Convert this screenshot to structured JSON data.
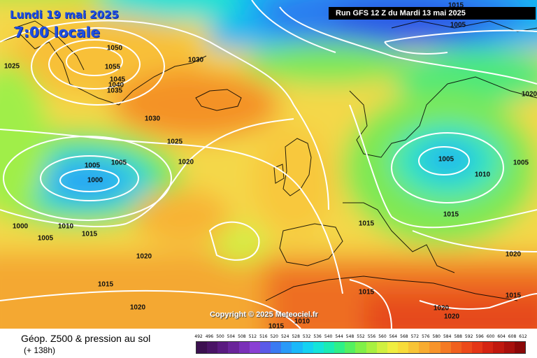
{
  "header": {
    "date": "Lundi 19 mai 2025",
    "time": "7:00 locale",
    "run": "Run GFS 12 Z du Mardi 13 mai 2025",
    "copyright": "Copyright © 2025 Meteociel.fr"
  },
  "legend": {
    "title": "Géop. Z500 & pression au sol",
    "subtitle": "(+ 138h)",
    "scale_values": [
      "492",
      "496",
      "500",
      "504",
      "508",
      "512",
      "516",
      "520",
      "524",
      "528",
      "532",
      "536",
      "540",
      "544",
      "548",
      "552",
      "556",
      "560",
      "564",
      "568",
      "572",
      "576",
      "580",
      "584",
      "588",
      "592",
      "596",
      "600",
      "604",
      "608",
      "612"
    ],
    "scale_colors": [
      "#3c1050",
      "#4a1466",
      "#5a1a80",
      "#6a249a",
      "#7a30b8",
      "#8a40d4",
      "#5a5ae8",
      "#3a7af2",
      "#2a9af8",
      "#1ab8fa",
      "#14d2f2",
      "#14e4da",
      "#1aecb4",
      "#2ef088",
      "#54f060",
      "#80f048",
      "#a8f040",
      "#d0f040",
      "#f0ee40",
      "#f8dc3a",
      "#f8c436",
      "#f8ac30",
      "#f8942a",
      "#f47a24",
      "#f0601e",
      "#ec4a1a",
      "#e43616",
      "#d42412",
      "#c0180e",
      "#a8100c",
      "#8a0808"
    ]
  },
  "isobars": [
    {
      "name": "label-1015-top",
      "text": "1015"
    },
    {
      "name": "label-1005-top",
      "text": "1005"
    },
    {
      "name": "label-1020-ne",
      "text": "1020"
    },
    {
      "name": "label-1050",
      "text": "1050"
    },
    {
      "name": "label-1055",
      "text": "1055"
    },
    {
      "name": "label-1045",
      "text": "1045"
    },
    {
      "name": "label-1040",
      "text": "1040"
    },
    {
      "name": "label-1035",
      "text": "1035"
    },
    {
      "name": "label-1030-greenland",
      "text": "1030"
    },
    {
      "name": "label-1025-west",
      "text": "1025"
    },
    {
      "name": "label-1030-mid",
      "text": "1030"
    },
    {
      "name": "label-1025-mid",
      "text": "1025"
    },
    {
      "name": "label-1020-mid",
      "text": "1020"
    },
    {
      "name": "label-1005-low-a",
      "text": "1005"
    },
    {
      "name": "label-1005-low-b",
      "text": "1005"
    },
    {
      "name": "label-1000-low",
      "text": "1000"
    },
    {
      "name": "label-1000-west",
      "text": "1000"
    },
    {
      "name": "label-1010-west",
      "text": "1010"
    },
    {
      "name": "label-1005-west",
      "text": "1005"
    },
    {
      "name": "label-1015-west",
      "text": "1015"
    },
    {
      "name": "label-1020-south",
      "text": "1020"
    },
    {
      "name": "label-1015-sw",
      "text": "1015"
    },
    {
      "name": "label-1020-sw",
      "text": "1020"
    },
    {
      "name": "label-1005-europe",
      "text": "1005"
    },
    {
      "name": "label-1010-europe",
      "text": "1010"
    },
    {
      "name": "label-1005-east",
      "text": "1005"
    },
    {
      "name": "label-1015-europe",
      "text": "1015"
    },
    {
      "name": "label-1015-france",
      "text": "1015"
    },
    {
      "name": "label-1020-east",
      "text": "1020"
    },
    {
      "name": "label-1015-med",
      "text": "1015"
    },
    {
      "name": "label-1020-africa-a",
      "text": "1020"
    },
    {
      "name": "label-1020-africa-b",
      "text": "1020"
    },
    {
      "name": "label-1015-se",
      "text": "1015"
    },
    {
      "name": "label-1015-bottom",
      "text": "1015"
    },
    {
      "name": "label-1010-bottom",
      "text": "1010"
    }
  ]
}
